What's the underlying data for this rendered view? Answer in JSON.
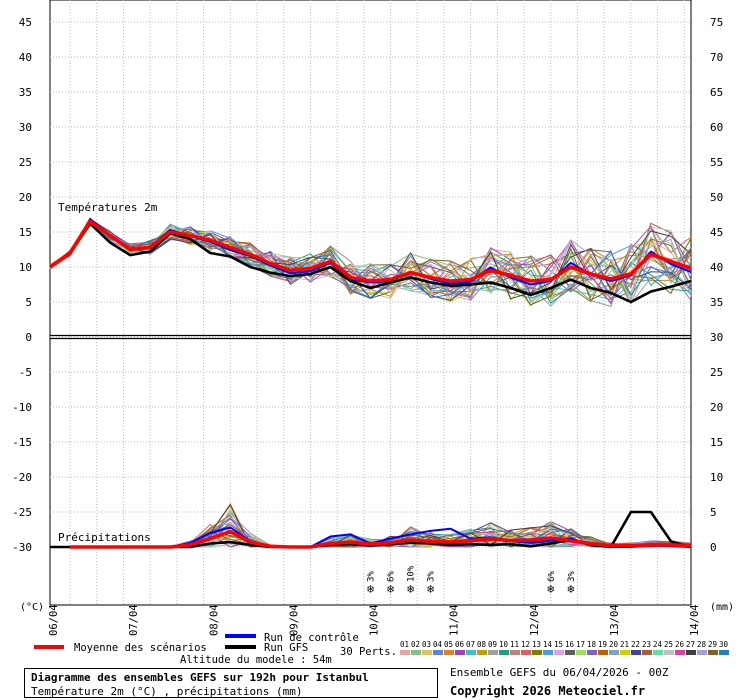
{
  "chart_data": {
    "type": "line",
    "title": "Diagramme des ensembles GEFS sur 192h pour Istanbul",
    "subtitle": "Température 2m (°C) , précipitations (mm)",
    "left_axis": {
      "unit_label": "(°C)",
      "ticks": [
        45,
        40,
        35,
        30,
        25,
        20,
        15,
        10,
        5,
        0,
        -5,
        -10,
        -15,
        -20,
        -25,
        -30
      ],
      "range": [
        -30,
        45
      ]
    },
    "right_axis": {
      "unit_label": "(mm)",
      "ticks": [
        75,
        70,
        65,
        60,
        55,
        50,
        45,
        40,
        35,
        30,
        25,
        20,
        15,
        10,
        5,
        0
      ],
      "range": [
        0,
        75
      ]
    },
    "x_labels": [
      "06/04",
      "07/04",
      "08/04",
      "09/04",
      "10/04",
      "11/04",
      "12/04",
      "13/04",
      "14/04"
    ],
    "x_range_hours": [
      0,
      192
    ],
    "temp_section_label": "Températures 2m",
    "precip_section_label": "Précipitations",
    "temperature": {
      "x_hours": [
        0,
        6,
        12,
        18,
        24,
        30,
        36,
        42,
        48,
        54,
        60,
        66,
        72,
        78,
        84,
        90,
        96,
        102,
        108,
        114,
        120,
        126,
        132,
        138,
        144,
        150,
        156,
        162,
        168,
        174,
        180,
        186,
        192
      ],
      "mean": [
        10,
        12,
        16.5,
        14.5,
        12.5,
        12.8,
        15,
        14.5,
        13.8,
        12.8,
        11.8,
        10.5,
        9.5,
        9.8,
        10.8,
        8.5,
        8,
        8.2,
        9.2,
        8.5,
        8,
        8.2,
        9.5,
        8.8,
        8,
        8.2,
        10,
        9,
        8.3,
        9,
        11.8,
        10.8,
        9.8
      ],
      "control": [
        10,
        12,
        16.8,
        14.6,
        12.6,
        12.9,
        15.3,
        14.4,
        13.6,
        12.4,
        11.6,
        10.2,
        9.1,
        9.4,
        10.6,
        8.2,
        7.8,
        8,
        9.3,
        8.3,
        7.6,
        7.9,
        9.9,
        8.5,
        7.5,
        8,
        10.6,
        8.9,
        8,
        8.8,
        12.2,
        10.4,
        9.3
      ],
      "gfs": [
        10,
        12,
        16.2,
        13.5,
        11.7,
        12.2,
        14.8,
        14,
        12,
        11.5,
        10,
        9.2,
        8.7,
        9,
        10,
        8,
        7,
        7.8,
        8.5,
        7.8,
        7.3,
        7.5,
        7.8,
        7,
        6,
        7,
        8.2,
        7,
        6.3,
        5,
        6.5,
        7.2,
        8
      ]
    },
    "precipitation": {
      "x_hours": [
        0,
        6,
        12,
        18,
        24,
        30,
        36,
        42,
        48,
        54,
        60,
        66,
        72,
        78,
        84,
        90,
        96,
        102,
        108,
        114,
        120,
        126,
        132,
        138,
        144,
        150,
        156,
        162,
        168,
        174,
        180,
        186,
        192
      ],
      "mean": [
        0,
        0,
        0,
        0,
        0,
        0,
        0,
        0.3,
        1.2,
        2.2,
        0.7,
        0.1,
        0,
        0,
        0.5,
        0.7,
        0.4,
        0.6,
        1,
        0.8,
        0.7,
        0.9,
        1.2,
        0.9,
        1,
        1.3,
        0.9,
        0.5,
        0.2,
        0.2,
        0.3,
        0.3,
        0.2
      ],
      "control": [
        0,
        0,
        0,
        0,
        0,
        0,
        0,
        0.6,
        2,
        2.8,
        0.8,
        0,
        0,
        0,
        1.5,
        1.8,
        0.5,
        1.2,
        1.8,
        2.3,
        2.6,
        1.2,
        1.4,
        0.8,
        0.6,
        0.9,
        1.2,
        0.4,
        0,
        0,
        0.2,
        0.1,
        0
      ],
      "gfs": [
        0,
        0,
        0,
        0,
        0,
        0,
        0,
        0,
        0.5,
        0.7,
        0.3,
        0,
        0,
        0,
        0.3,
        0.4,
        0.2,
        0.4,
        0.6,
        0.5,
        0.3,
        0.4,
        0.3,
        0.4,
        0.1,
        0.5,
        1,
        0.3,
        0,
        5,
        5,
        0.8,
        0
      ]
    },
    "snow_markers": [
      {
        "hour": 96,
        "label": "3%"
      },
      {
        "hour": 102,
        "label": "6%"
      },
      {
        "hour": 108,
        "label": "10%"
      },
      {
        "hour": 114,
        "label": "3%"
      },
      {
        "hour": 150,
        "label": "6%"
      },
      {
        "hour": 156,
        "label": "3%"
      }
    ],
    "legend": {
      "mean_label": "Moyenne des scénarios",
      "control_label": "Run de contrôle",
      "gfs_label": "Run GFS",
      "perts_label": "30 Perts.",
      "perturbation_numbers": [
        "01",
        "02",
        "03",
        "04",
        "05",
        "06",
        "07",
        "08",
        "09",
        "10",
        "11",
        "12",
        "13",
        "14",
        "15",
        "16",
        "17",
        "18",
        "19",
        "20",
        "21",
        "22",
        "23",
        "24",
        "25",
        "26",
        "27",
        "28",
        "29",
        "30"
      ]
    },
    "colors": {
      "mean": "#ff0000",
      "control": "#0000ff",
      "gfs": "#000000",
      "perturbations": [
        "#e8a0a0",
        "#80c080",
        "#e0c060",
        "#6080e0",
        "#e08020",
        "#a040c0",
        "#40c0c0",
        "#c0a000",
        "#a0a0a0",
        "#20a080",
        "#c08080",
        "#e06060",
        "#808000",
        "#40a0e0",
        "#e0a0e0",
        "#606060",
        "#a0e060",
        "#8060c0",
        "#c06000",
        "#80a0c0",
        "#d0d000",
        "#4040a0",
        "#a06040",
        "#60e0a0",
        "#c0c0c0",
        "#e040a0",
        "#404040",
        "#a0a0e0",
        "#806020",
        "#2080c0"
      ]
    }
  },
  "altitude_label": "Altitude du modele : 54m",
  "ensemble_label": "Ensemble GEFS du 06/04/2026 - 00Z",
  "copyright": "Copyright 2026 Meteociel.fr"
}
